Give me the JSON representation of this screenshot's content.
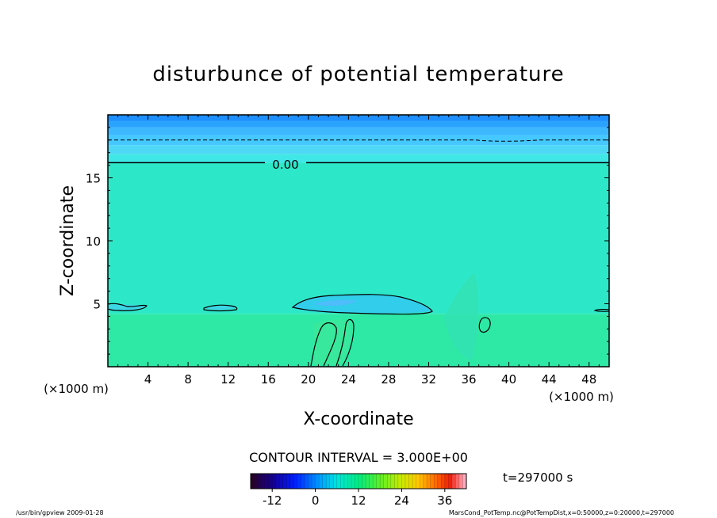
{
  "chart_data": {
    "type": "heatmap",
    "title": "disturbunce of potential temperature",
    "xlabel": "X-coordinate",
    "ylabel": "Z-coordinate",
    "x_unit_left": "(×1000 m)",
    "x_unit_right": "(×1000 m)",
    "xlim": [
      0,
      50
    ],
    "ylim": [
      0,
      20
    ],
    "x_ticks": [
      4,
      8,
      12,
      16,
      20,
      24,
      28,
      32,
      36,
      40,
      44,
      48
    ],
    "y_ticks": [
      5,
      10,
      15
    ],
    "contour_label": "0.00",
    "contour_interval_text": "CONTOUR INTERVAL = 3.000E+00",
    "time_text": "t=297000 s",
    "colorbar": {
      "min": -18,
      "max": 42,
      "ticks": [
        -12,
        0,
        12,
        24,
        36
      ]
    },
    "bands": [
      {
        "z_from": 19.5,
        "z_to": 20.0,
        "value": -15,
        "color": "#1e8fff"
      },
      {
        "z_from": 19.0,
        "z_to": 19.5,
        "value": -12,
        "color": "#2aa3ff"
      },
      {
        "z_from": 18.4,
        "z_to": 19.0,
        "value": -9,
        "color": "#3db8ff"
      },
      {
        "z_from": 17.6,
        "z_to": 18.4,
        "value": -6,
        "color": "#45c8ff"
      },
      {
        "z_from": 16.9,
        "z_to": 17.6,
        "value": -3,
        "color": "#4ed8f6"
      },
      {
        "z_from": 16.2,
        "z_to": 16.9,
        "value": -1,
        "color": "#3fe8e6"
      },
      {
        "z_from": 4.2,
        "z_to": 16.2,
        "value": 1,
        "color": "#2de8c8"
      },
      {
        "z_from": 0.0,
        "z_to": 4.2,
        "value": 3,
        "color": "#2ee8a6"
      }
    ],
    "solid_contour_z": 16.2,
    "dashed_contour_z": 18.0
  },
  "footer": {
    "left": "/usr/bin/gpview   2009-01-28",
    "right": "MarsCond_PotTemp.nc@PotTempDist,x=0:50000,z=0:20000,t=297000"
  }
}
